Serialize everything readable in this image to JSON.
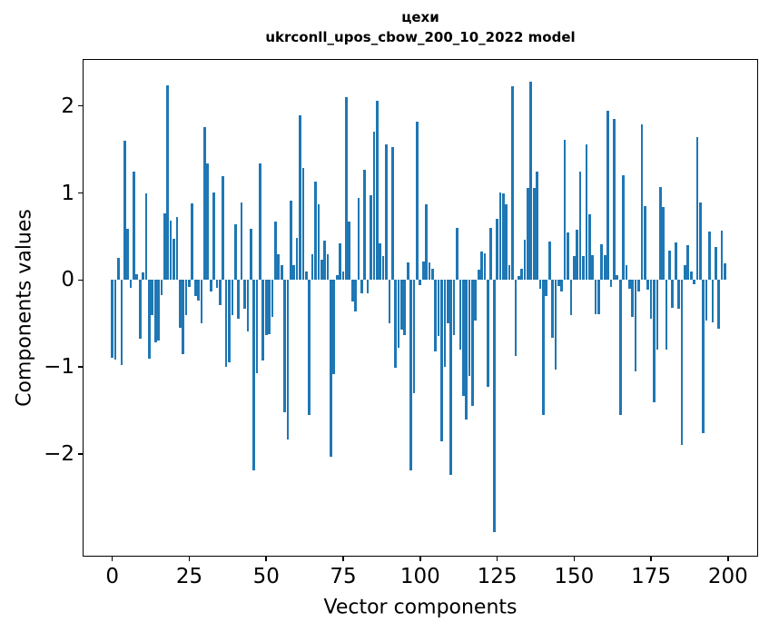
{
  "figure": {
    "title_line1": "цехи",
    "title_line2": "ukrconll_upos_cbow_200_10_2022 model",
    "xlabel": "Vector components",
    "ylabel": "Components values"
  },
  "chart_data": {
    "type": "bar",
    "title": "цехи\nukrconll_upos_cbow_200_10_2022 model",
    "xlabel": "Vector components",
    "ylabel": "Components values",
    "bar_color": "#1f77b4",
    "bar_width_units": 0.8,
    "xlim": [
      -9.64,
      209.77
    ],
    "ylim": [
      -3.18,
      2.54
    ],
    "grid": false,
    "legend": null,
    "x_tick_values": [
      0,
      25,
      50,
      75,
      100,
      125,
      150,
      175,
      200
    ],
    "x_tick_labels": [
      "0",
      "25",
      "50",
      "75",
      "100",
      "125",
      "150",
      "175",
      "200"
    ],
    "y_tick_values": [
      2,
      1,
      0,
      -1,
      -2
    ],
    "y_tick_labels": [
      "2",
      "1",
      "0",
      "−1",
      "−2"
    ],
    "x": "indices 0..199",
    "values": [
      -0.89,
      -0.91,
      0.25,
      -0.98,
      1.6,
      0.59,
      -0.09,
      1.25,
      0.07,
      -0.68,
      0.09,
      1.0,
      -0.9,
      -0.4,
      -0.72,
      -0.7,
      -0.17,
      0.77,
      2.24,
      0.68,
      0.47,
      0.72,
      -0.55,
      -0.85,
      -0.4,
      -0.08,
      0.88,
      -0.18,
      -0.24,
      -0.5,
      1.76,
      1.34,
      -0.13,
      1.01,
      -0.09,
      -0.29,
      1.19,
      -1.0,
      -0.95,
      -0.4,
      0.64,
      -0.45,
      0.89,
      -0.33,
      -0.59,
      0.59,
      -2.19,
      -1.07,
      1.34,
      -0.93,
      -0.63,
      -0.62,
      -0.42,
      0.67,
      0.3,
      0.17,
      -1.52,
      -1.83,
      0.91,
      0.17,
      0.48,
      1.89,
      1.29,
      0.1,
      -1.55,
      0.3,
      1.13,
      0.87,
      0.23,
      0.45,
      0.3,
      -2.03,
      -1.08,
      0.06,
      0.42,
      0.1,
      2.1,
      0.67,
      -0.25,
      -0.36,
      0.94,
      -0.15,
      1.27,
      -0.15,
      0.97,
      1.71,
      2.06,
      0.42,
      0.28,
      1.56,
      -0.5,
      1.53,
      -1.01,
      -0.78,
      -0.57,
      -0.63,
      0.2,
      -2.19,
      -1.3,
      1.82,
      -0.06,
      0.21,
      0.87,
      0.2,
      0.13,
      -0.82,
      -0.64,
      -1.85,
      -1.0,
      -0.5,
      -2.24,
      -0.63,
      0.6,
      -0.8,
      -1.33,
      -1.6,
      -1.1,
      -1.45,
      -0.47,
      0.12,
      0.33,
      0.31,
      -1.23,
      0.6,
      -2.9,
      0.7,
      1.01,
      1.0,
      0.87,
      0.17,
      2.23,
      -0.87,
      0.05,
      0.13,
      0.46,
      1.06,
      2.28,
      1.06,
      1.25,
      -0.1,
      -1.55,
      -0.18,
      0.44,
      -0.66,
      -1.03,
      -0.07,
      -0.13,
      1.61,
      0.55,
      -0.4,
      0.28,
      0.58,
      1.25,
      0.28,
      1.56,
      0.75,
      0.29,
      -0.39,
      -0.39,
      0.41,
      0.29,
      1.95,
      -0.08,
      1.85,
      0.06,
      -1.55,
      1.2,
      0.17,
      -0.1,
      -0.42,
      -1.05,
      -0.13,
      1.79,
      0.85,
      -0.11,
      -0.45,
      -1.41,
      -0.8,
      1.07,
      0.84,
      -0.8,
      0.34,
      -0.32,
      0.43,
      -0.33,
      -1.9,
      0.17,
      0.4,
      0.1,
      -0.05,
      1.64,
      0.89,
      -1.76,
      -0.47,
      0.56,
      -0.49,
      0.38,
      -0.56,
      0.57,
      0.19
    ]
  }
}
